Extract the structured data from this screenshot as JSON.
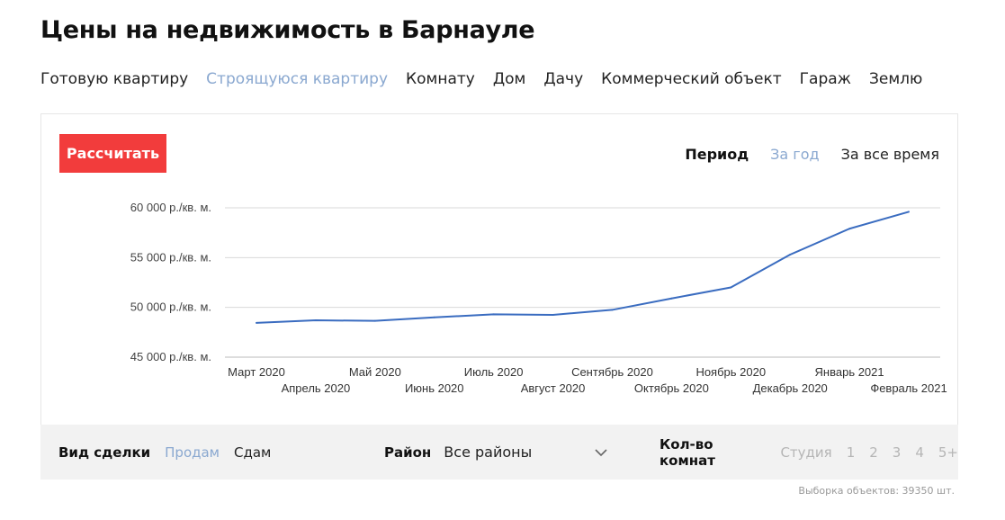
{
  "page": {
    "title": "Цены на недвижимость в Барнауле"
  },
  "property_types": [
    {
      "label": "Готовую квартиру",
      "active": false
    },
    {
      "label": "Строящуюся квартиру",
      "active": true
    },
    {
      "label": "Комнату",
      "active": false
    },
    {
      "label": "Дом",
      "active": false
    },
    {
      "label": "Дачу",
      "active": false
    },
    {
      "label": "Коммерческий объект",
      "active": false
    },
    {
      "label": "Гараж",
      "active": false
    },
    {
      "label": "Землю",
      "active": false
    }
  ],
  "controls": {
    "calculate_label": "Рассчитать",
    "period_label": "Период",
    "period_year": "За год",
    "period_all": "За все время"
  },
  "colors": {
    "accent_red": "#f23c3c",
    "active_link": "#8aa8d0",
    "line": "#3a6cc0"
  },
  "chart_data": {
    "type": "line",
    "title": "",
    "xlabel": "",
    "ylabel": "",
    "categories": [
      "Март 2020",
      "Апрель 2020",
      "Май 2020",
      "Июнь 2020",
      "Июль 2020",
      "Август 2020",
      "Сентябрь 2020",
      "Октябрь 2020",
      "Ноябрь 2020",
      "Декабрь 2020",
      "Январь 2021",
      "Февраль 2021"
    ],
    "values": [
      48450,
      48700,
      48650,
      49000,
      49300,
      49250,
      49750,
      50900,
      52000,
      55300,
      57900,
      59600
    ],
    "ylim": [
      45000,
      60000
    ],
    "yticks": [
      45000,
      50000,
      55000,
      60000
    ],
    "ytick_labels": [
      "45 000 р./кв. м.",
      "50 000 р./кв. м.",
      "55 000 р./кв. м.",
      "60 000 р./кв. м."
    ],
    "grid": true
  },
  "filters": {
    "deal_label": "Вид сделки",
    "deal_sell": "Продам",
    "deal_rent": "Сдам",
    "district_label": "Район",
    "district_value": "Все районы",
    "rooms_label": "Кол-во комнат",
    "rooms": [
      "Студия",
      "1",
      "2",
      "3",
      "4",
      "5+"
    ]
  },
  "footer": {
    "sample_note": "Выборка объектов: 39350 шт."
  }
}
